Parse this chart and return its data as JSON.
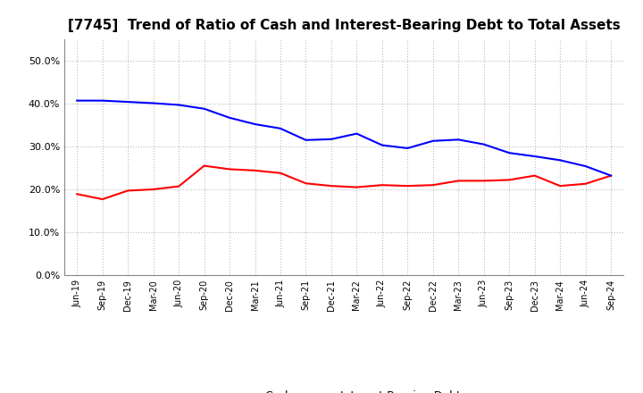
{
  "title": "[7745]  Trend of Ratio of Cash and Interest-Bearing Debt to Total Assets",
  "x_labels": [
    "Jun-19",
    "Sep-19",
    "Dec-19",
    "Mar-20",
    "Jun-20",
    "Sep-20",
    "Dec-20",
    "Mar-21",
    "Jun-21",
    "Sep-21",
    "Dec-21",
    "Mar-22",
    "Jun-22",
    "Sep-22",
    "Dec-22",
    "Mar-23",
    "Jun-23",
    "Sep-23",
    "Dec-23",
    "Mar-24",
    "Jun-24",
    "Sep-24"
  ],
  "cash": [
    0.189,
    0.177,
    0.197,
    0.2,
    0.207,
    0.255,
    0.247,
    0.244,
    0.238,
    0.214,
    0.208,
    0.205,
    0.21,
    0.208,
    0.21,
    0.22,
    0.22,
    0.222,
    0.232,
    0.208,
    0.213,
    0.232
  ],
  "debt": [
    0.407,
    0.407,
    0.404,
    0.401,
    0.397,
    0.388,
    0.367,
    0.352,
    0.342,
    0.315,
    0.317,
    0.33,
    0.303,
    0.296,
    0.313,
    0.316,
    0.305,
    0.285,
    0.277,
    0.268,
    0.254,
    0.232
  ],
  "cash_color": "#FF0000",
  "debt_color": "#0000FF",
  "background_color": "#FFFFFF",
  "grid_color": "#BBBBBB",
  "ylim": [
    0.0,
    0.55
  ],
  "yticks": [
    0.0,
    0.1,
    0.2,
    0.3,
    0.4,
    0.5
  ],
  "title_fontsize": 11,
  "legend_labels": [
    "Cash",
    "Interest-Bearing Debt"
  ]
}
